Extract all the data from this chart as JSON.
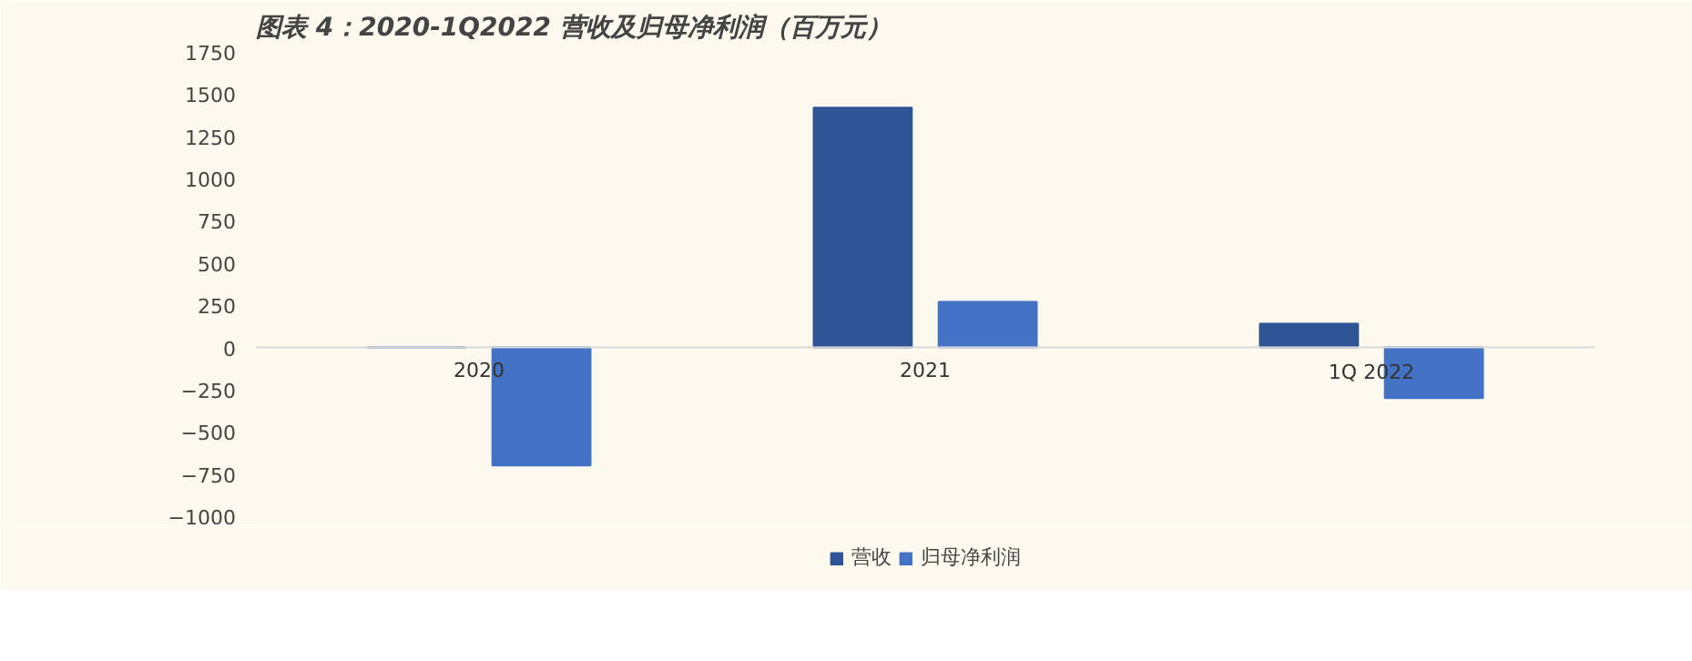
{
  "chart_data": {
    "type": "bar",
    "title": "图表 4：2020-1Q2022 营收及归母净利润（百万元）",
    "categories": [
      "2020",
      "2021",
      "1Q 2022"
    ],
    "series": [
      {
        "name": "营收",
        "color": "#2f5597",
        "values": [
          0,
          1420,
          140
        ]
      },
      {
        "name": "归母净利润",
        "color": "#4472c4",
        "values": [
          -700,
          270,
          -300
        ]
      }
    ],
    "ylim": [
      -1000,
      1750
    ],
    "yticks": [
      -1000,
      -750,
      -500,
      -250,
      0,
      250,
      500,
      750,
      1000,
      1250,
      1500,
      1750
    ],
    "grid": false,
    "legend": "bottom"
  }
}
